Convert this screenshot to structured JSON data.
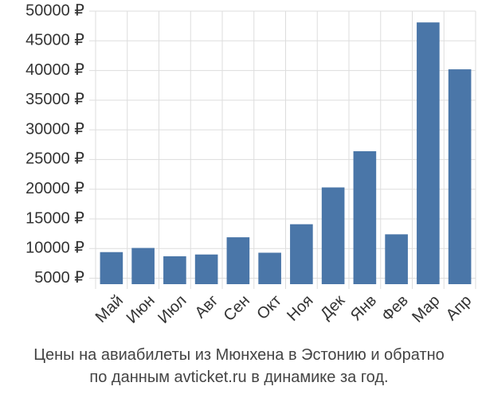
{
  "chart_data": {
    "type": "bar",
    "categories": [
      "Май",
      "Июн",
      "Июл",
      "Авг",
      "Сен",
      "Окт",
      "Ноя",
      "Дек",
      "Янв",
      "Фев",
      "Мар",
      "Апр"
    ],
    "values": [
      9400,
      10100,
      8700,
      9000,
      11900,
      9300,
      14100,
      20300,
      26400,
      12400,
      48100,
      40200
    ],
    "y_tick_labels": [
      "5000 ₽",
      "10000 ₽",
      "15000 ₽",
      "20000 ₽",
      "25000 ₽",
      "30000 ₽",
      "35000 ₽",
      "40000 ₽",
      "45000 ₽",
      "50000 ₽"
    ],
    "y_ticks": [
      5000,
      10000,
      15000,
      20000,
      25000,
      30000,
      35000,
      40000,
      45000,
      50000
    ],
    "ylim": [
      4000,
      50000
    ],
    "grid": true,
    "bar_color": "#4a76a8",
    "grid_color": "#dddddd",
    "title": "",
    "xlabel": "",
    "ylabel": ""
  },
  "caption": {
    "line1": "Цены на авиабилеты из Мюнхена в Эстонию и обратно",
    "line2": "по данным avticket.ru в динамике за год."
  }
}
